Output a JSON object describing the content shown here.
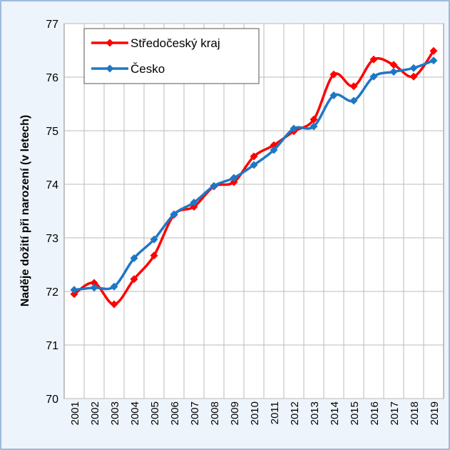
{
  "chart_data": {
    "type": "line",
    "y_label": "Naděje dožití při narození (v letech)",
    "x": [
      "2001",
      "2002",
      "2003",
      "2004",
      "2005",
      "2006",
      "2007",
      "2008",
      "2009",
      "2010",
      "2011",
      "2012",
      "2013",
      "2014",
      "2015",
      "2016",
      "2017",
      "2018",
      "2019"
    ],
    "series": [
      {
        "name": "Středočeský kraj",
        "color": "#ff0000",
        "values": [
          71.95,
          72.16,
          71.76,
          72.23,
          72.67,
          73.43,
          73.58,
          73.96,
          74.04,
          74.52,
          74.73,
          74.99,
          75.21,
          76.05,
          75.83,
          76.33,
          76.23,
          76.01,
          76.49
        ]
      },
      {
        "name": "Česko",
        "color": "#1f77c4",
        "values": [
          72.03,
          72.07,
          72.09,
          72.62,
          72.97,
          73.44,
          73.66,
          73.97,
          74.12,
          74.36,
          74.64,
          75.04,
          75.08,
          75.66,
          75.56,
          76.01,
          76.1,
          76.17,
          76.31
        ]
      }
    ],
    "ylim": [
      70,
      77
    ],
    "yticks": [
      70,
      71,
      72,
      73,
      74,
      75,
      76,
      77
    ],
    "grid": true,
    "legend": "upper left"
  }
}
